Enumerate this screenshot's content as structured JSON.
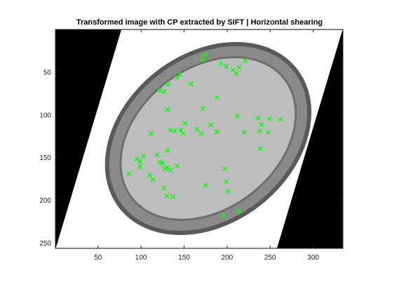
{
  "chart_data": {
    "type": "scatter",
    "title": "Transformed image with CP extracted by SIFT | Horizontal shearing",
    "xlabel": "",
    "ylabel": "",
    "xlim": [
      0.5,
      334.5
    ],
    "ylim": [
      256.5,
      0.5
    ],
    "y_reversed": true,
    "grid": false,
    "x_ticks": [
      "50",
      "100",
      "150",
      "200",
      "250",
      "300"
    ],
    "y_ticks": [
      "50",
      "100",
      "150",
      "200",
      "250"
    ],
    "x_tick_values": [
      50,
      100,
      150,
      200,
      250,
      300
    ],
    "y_tick_values": [
      50,
      100,
      150,
      200,
      250
    ],
    "image": {
      "description_free": true,
      "background_color": "#000000",
      "sheared_region_color": "#ffffff",
      "sheared_corners": [
        [
          1,
          256
        ],
        [
          258,
          256
        ],
        [
          334,
          1
        ],
        [
          77,
          1
        ]
      ]
    },
    "marker": {
      "symbol": "cross",
      "color": "#00ff00"
    },
    "points": [
      {
        "x": 172,
        "y": 36
      },
      {
        "x": 175,
        "y": 30
      },
      {
        "x": 193,
        "y": 40
      },
      {
        "x": 199,
        "y": 44
      },
      {
        "x": 207,
        "y": 48
      },
      {
        "x": 211,
        "y": 52
      },
      {
        "x": 221,
        "y": 37
      },
      {
        "x": 214,
        "y": 45
      },
      {
        "x": 142,
        "y": 57
      },
      {
        "x": 145,
        "y": 53
      },
      {
        "x": 131,
        "y": 65
      },
      {
        "x": 127,
        "y": 73
      },
      {
        "x": 122,
        "y": 72
      },
      {
        "x": 158,
        "y": 64
      },
      {
        "x": 172,
        "y": 93
      },
      {
        "x": 188,
        "y": 80
      },
      {
        "x": 131,
        "y": 94
      },
      {
        "x": 151,
        "y": 110
      },
      {
        "x": 181,
        "y": 112
      },
      {
        "x": 188,
        "y": 120
      },
      {
        "x": 212,
        "y": 102
      },
      {
        "x": 220,
        "y": 121
      },
      {
        "x": 236,
        "y": 104
      },
      {
        "x": 240,
        "y": 112
      },
      {
        "x": 238,
        "y": 119
      },
      {
        "x": 239,
        "y": 140
      },
      {
        "x": 248,
        "y": 121
      },
      {
        "x": 262,
        "y": 106
      },
      {
        "x": 249,
        "y": 105
      },
      {
        "x": 165,
        "y": 117
      },
      {
        "x": 170,
        "y": 122
      },
      {
        "x": 134,
        "y": 118
      },
      {
        "x": 139,
        "y": 119
      },
      {
        "x": 146,
        "y": 118
      },
      {
        "x": 149,
        "y": 122
      },
      {
        "x": 112,
        "y": 122
      },
      {
        "x": 131,
        "y": 142
      },
      {
        "x": 99,
        "y": 155
      },
      {
        "x": 95,
        "y": 152
      },
      {
        "x": 99,
        "y": 161
      },
      {
        "x": 103,
        "y": 149
      },
      {
        "x": 119,
        "y": 147
      },
      {
        "x": 122,
        "y": 156
      },
      {
        "x": 125,
        "y": 157
      },
      {
        "x": 128,
        "y": 163
      },
      {
        "x": 131,
        "y": 162
      },
      {
        "x": 134,
        "y": 165
      },
      {
        "x": 142,
        "y": 160
      },
      {
        "x": 86,
        "y": 169
      },
      {
        "x": 110,
        "y": 171
      },
      {
        "x": 114,
        "y": 176
      },
      {
        "x": 127,
        "y": 186
      },
      {
        "x": 130,
        "y": 195
      },
      {
        "x": 137,
        "y": 196
      },
      {
        "x": 175,
        "y": 183
      },
      {
        "x": 197,
        "y": 163
      },
      {
        "x": 199,
        "y": 178
      },
      {
        "x": 201,
        "y": 190
      },
      {
        "x": 214,
        "y": 213
      },
      {
        "x": 196,
        "y": 218
      }
    ]
  }
}
